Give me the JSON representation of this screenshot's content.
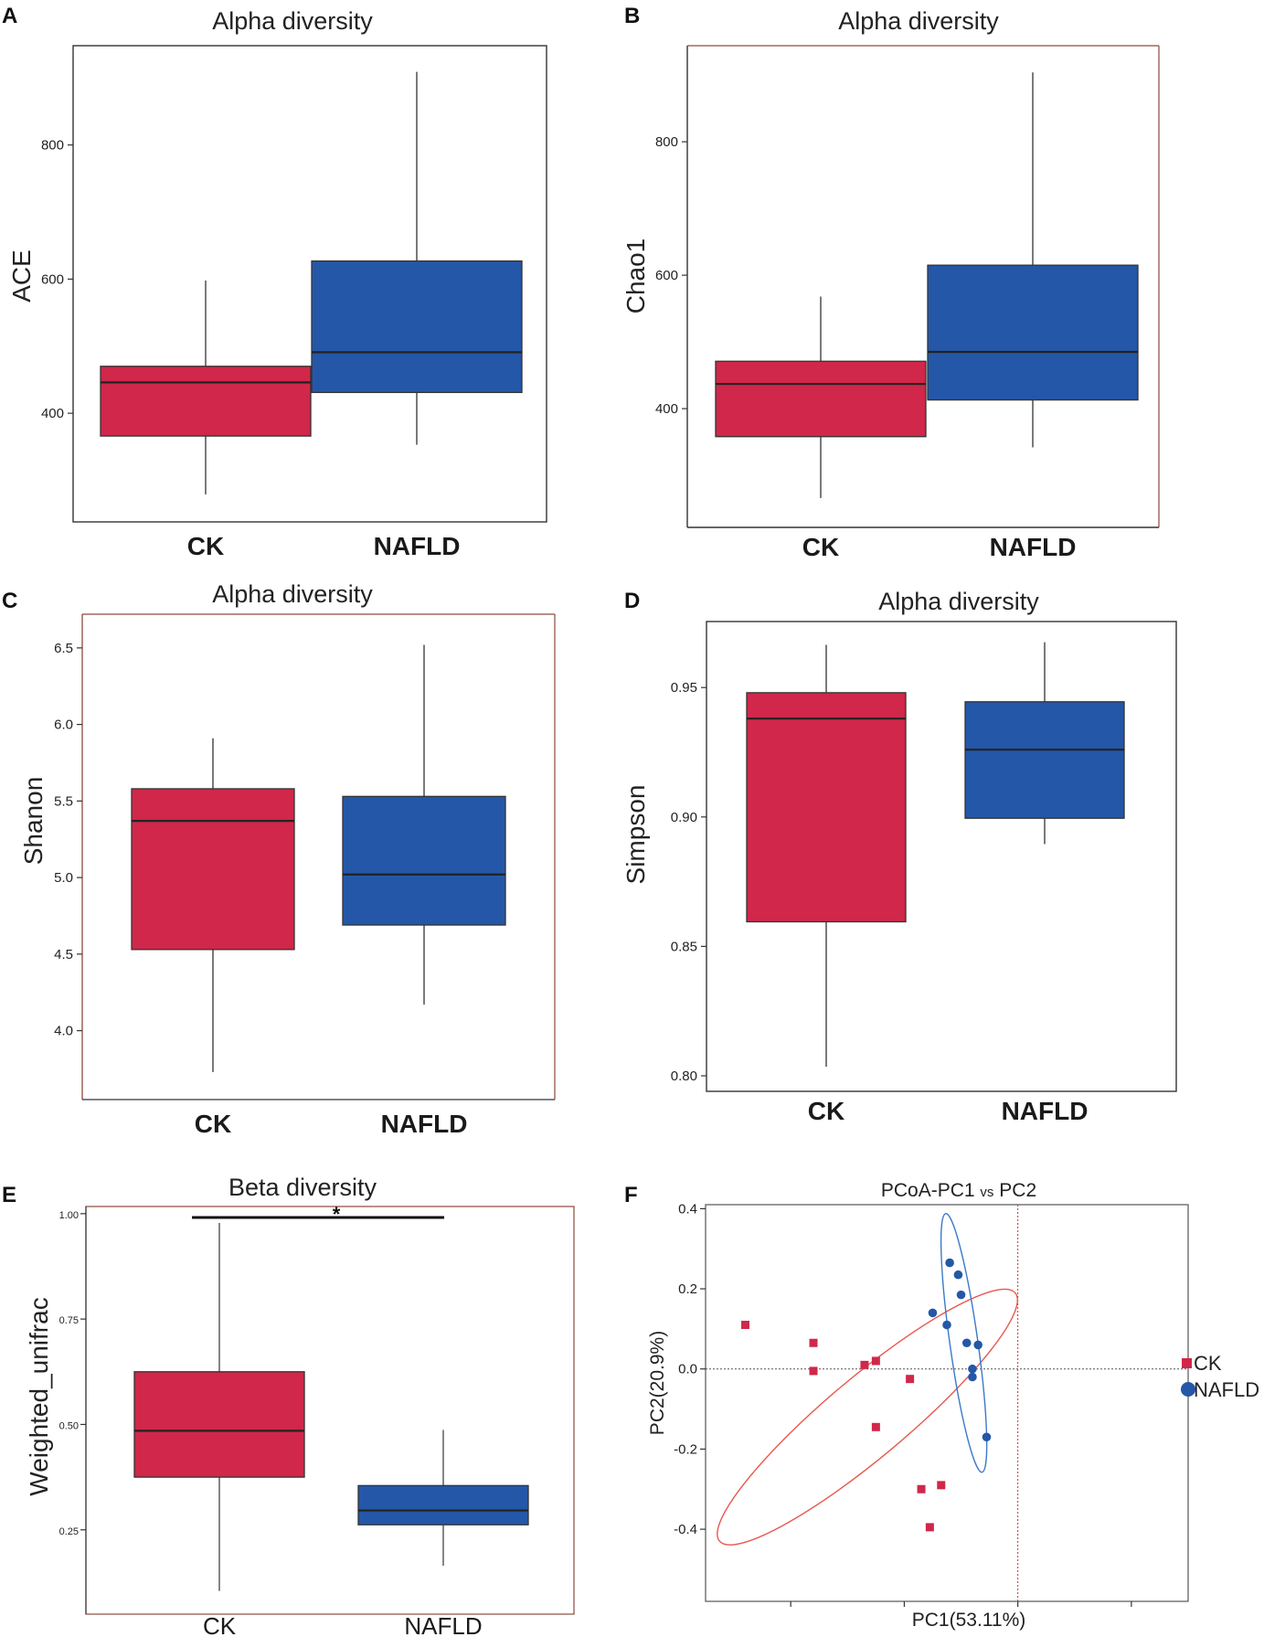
{
  "colors": {
    "ck": "#d0274a",
    "nafld": "#2457a7",
    "ellipse_ck": "#e8574e",
    "ellipse_nafld": "#3b79cc",
    "frame_dark": "#333333",
    "frame_brown": "#8b4a3c"
  },
  "chart_data": [
    {
      "panel": "A",
      "type": "box",
      "title": "Alpha diversity",
      "ylabel": "ACE",
      "ylim": [
        238,
        948
      ],
      "yticks": [
        400,
        600,
        800
      ],
      "categories": [
        "CK",
        "NAFLD"
      ],
      "boxes": [
        {
          "name": "CK",
          "color_key": "ck",
          "min": 279,
          "q1": 366,
          "median": 446,
          "q3": 470,
          "max": 598
        },
        {
          "name": "NAFLD",
          "color_key": "nafld",
          "min": 353,
          "q1": 431,
          "median": 491,
          "q3": 627,
          "max": 909
        }
      ]
    },
    {
      "panel": "B",
      "type": "box",
      "title": "Alpha diversity",
      "ylabel": "Chao1",
      "ylim": [
        222,
        944
      ],
      "yticks": [
        400,
        600,
        800
      ],
      "categories": [
        "CK",
        "NAFLD"
      ],
      "boxes": [
        {
          "name": "CK",
          "color_key": "ck",
          "min": 266,
          "q1": 358,
          "median": 437,
          "q3": 471,
          "max": 568
        },
        {
          "name": "NAFLD",
          "color_key": "nafld",
          "min": 342,
          "q1": 413,
          "median": 485,
          "q3": 615,
          "max": 904
        }
      ]
    },
    {
      "panel": "C",
      "type": "box",
      "title": "Alpha diversity",
      "ylabel": "Shanon",
      "ylim": [
        3.55,
        6.72
      ],
      "yticks": [
        4.0,
        4.5,
        5.0,
        5.5,
        6.0,
        6.5
      ],
      "ytick_labels": [
        "4.0",
        "4.5",
        "5.0",
        "5.5",
        "6.0",
        "6.5"
      ],
      "categories": [
        "CK",
        "NAFLD"
      ],
      "boxes": [
        {
          "name": "CK",
          "color_key": "ck",
          "min": 3.73,
          "q1": 4.53,
          "median": 5.37,
          "q3": 5.58,
          "max": 5.91
        },
        {
          "name": "NAFLD",
          "color_key": "nafld",
          "min": 4.17,
          "q1": 4.69,
          "median": 5.02,
          "q3": 5.53,
          "max": 6.52
        }
      ]
    },
    {
      "panel": "D",
      "type": "box",
      "title": "Alpha diversity",
      "ylabel": "Simpson",
      "ylim": [
        0.794,
        0.9755
      ],
      "yticks": [
        0.8,
        0.85,
        0.9,
        0.95
      ],
      "ytick_labels": [
        "0.80",
        "0.85",
        "0.90",
        "0.95"
      ],
      "categories": [
        "CK",
        "NAFLD"
      ],
      "boxes": [
        {
          "name": "CK",
          "color_key": "ck",
          "min": 0.8035,
          "q1": 0.8595,
          "median": 0.938,
          "q3": 0.948,
          "max": 0.9665
        },
        {
          "name": "NAFLD",
          "color_key": "nafld",
          "min": 0.8895,
          "q1": 0.8995,
          "median": 0.926,
          "q3": 0.9445,
          "max": 0.9675
        }
      ]
    },
    {
      "panel": "E",
      "type": "box",
      "title": "Beta diversity",
      "ylabel": "Weighted_unifrac",
      "ylim": [
        0.05,
        1.017
      ],
      "yticks": [
        0.25,
        0.5,
        0.75,
        1.0
      ],
      "ytick_labels": [
        "0.25",
        "0.50",
        "0.75",
        "1.00"
      ],
      "categories": [
        "CK",
        "NAFLD"
      ],
      "significance": "*",
      "boxes": [
        {
          "name": "CK",
          "color_key": "ck",
          "min": 0.105,
          "q1": 0.375,
          "median": 0.485,
          "q3": 0.625,
          "max": 0.978
        },
        {
          "name": "NAFLD",
          "color_key": "nafld",
          "min": 0.165,
          "q1": 0.262,
          "median": 0.296,
          "q3": 0.355,
          "max": 0.487
        }
      ]
    },
    {
      "panel": "F",
      "type": "scatter",
      "title_prefix": "PCoA-PC1",
      "title_vs": "vs",
      "title_suffix": "PC2",
      "xlabel": "PC1(53.11%)",
      "ylabel": "PC2(20.9%)",
      "xlim": [
        -0.55,
        0.3
      ],
      "ylim": [
        -0.58,
        0.41
      ],
      "yticks": [
        -0.4,
        -0.2,
        0.0,
        0.2,
        0.4
      ],
      "ytick_labels": [
        "-0.4",
        "-0.2",
        "0.0",
        "0.2",
        "0.4"
      ],
      "xticks": [
        -0.4,
        -0.2,
        0.0,
        0.2
      ],
      "series": [
        {
          "name": "CK",
          "marker": "square",
          "color_key": "ck",
          "points": [
            [
              -0.48,
              0.11
            ],
            [
              -0.36,
              0.065
            ],
            [
              -0.36,
              -0.005
            ],
            [
              -0.27,
              0.01
            ],
            [
              -0.25,
              0.02
            ],
            [
              -0.25,
              -0.145
            ],
            [
              -0.19,
              -0.025
            ],
            [
              -0.17,
              -0.3
            ],
            [
              -0.155,
              -0.395
            ],
            [
              -0.135,
              -0.29
            ]
          ]
        },
        {
          "name": "NAFLD",
          "marker": "circle",
          "color_key": "nafld",
          "points": [
            [
              -0.12,
              0.265
            ],
            [
              -0.105,
              0.235
            ],
            [
              -0.1,
              0.185
            ],
            [
              -0.15,
              0.14
            ],
            [
              -0.125,
              0.11
            ],
            [
              -0.09,
              0.065
            ],
            [
              -0.07,
              0.06
            ],
            [
              -0.08,
              0.0
            ],
            [
              -0.08,
              -0.02
            ],
            [
              -0.055,
              -0.17
            ]
          ]
        }
      ],
      "ellipses": [
        {
          "group": "CK",
          "cx": -0.265,
          "cy": -0.12,
          "rx": 0.34,
          "ry": 0.1,
          "angle_deg": -40
        },
        {
          "group": "NAFLD",
          "cx": -0.095,
          "cy": 0.065,
          "rx": 0.23,
          "ry": 0.035,
          "angle_deg": 82
        }
      ]
    }
  ]
}
